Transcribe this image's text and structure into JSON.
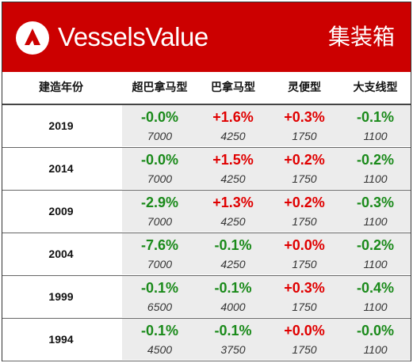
{
  "header": {
    "brand": "VesselsValue",
    "title": "集装箱",
    "brand_color": "#cc0000"
  },
  "columns": [
    "建造年份",
    "超巴拿马型",
    "巴拿马型",
    "灵便型",
    "大支线型"
  ],
  "rows": [
    {
      "year": "2019",
      "cells": [
        {
          "change": "-0.0%",
          "value": "7000",
          "dir": "neg"
        },
        {
          "change": "+1.6%",
          "value": "4250",
          "dir": "pos"
        },
        {
          "change": "+0.3%",
          "value": "1750",
          "dir": "pos"
        },
        {
          "change": "-0.1%",
          "value": "1100",
          "dir": "neg"
        }
      ]
    },
    {
      "year": "2014",
      "cells": [
        {
          "change": "-0.0%",
          "value": "7000",
          "dir": "neg"
        },
        {
          "change": "+1.5%",
          "value": "4250",
          "dir": "pos"
        },
        {
          "change": "+0.2%",
          "value": "1750",
          "dir": "pos"
        },
        {
          "change": "-0.2%",
          "value": "1100",
          "dir": "neg"
        }
      ]
    },
    {
      "year": "2009",
      "cells": [
        {
          "change": "-2.9%",
          "value": "7000",
          "dir": "neg"
        },
        {
          "change": "+1.3%",
          "value": "4250",
          "dir": "pos"
        },
        {
          "change": "+0.2%",
          "value": "1750",
          "dir": "pos"
        },
        {
          "change": "-0.3%",
          "value": "1100",
          "dir": "neg"
        }
      ]
    },
    {
      "year": "2004",
      "cells": [
        {
          "change": "-7.6%",
          "value": "7000",
          "dir": "neg"
        },
        {
          "change": "-0.1%",
          "value": "4250",
          "dir": "neg"
        },
        {
          "change": "+0.0%",
          "value": "1750",
          "dir": "pos"
        },
        {
          "change": "-0.2%",
          "value": "1100",
          "dir": "neg"
        }
      ]
    },
    {
      "year": "1999",
      "cells": [
        {
          "change": "-0.1%",
          "value": "6500",
          "dir": "neg"
        },
        {
          "change": "-0.1%",
          "value": "4000",
          "dir": "neg"
        },
        {
          "change": "+0.3%",
          "value": "1750",
          "dir": "pos"
        },
        {
          "change": "-0.4%",
          "value": "1100",
          "dir": "neg"
        }
      ]
    },
    {
      "year": "1994",
      "cells": [
        {
          "change": "-0.1%",
          "value": "4500",
          "dir": "neg"
        },
        {
          "change": "-0.1%",
          "value": "3750",
          "dir": "neg"
        },
        {
          "change": "+0.0%",
          "value": "1750",
          "dir": "pos"
        },
        {
          "change": "-0.0%",
          "value": "1100",
          "dir": "neg"
        }
      ]
    }
  ]
}
